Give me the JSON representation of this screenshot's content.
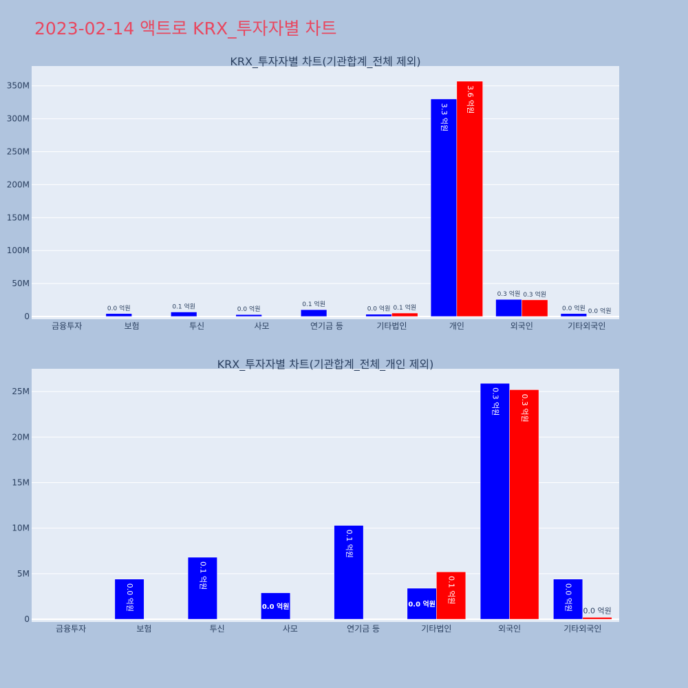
{
  "page_title": "2023-02-14 액트로 KRX_투자자별 차트",
  "colors": {
    "buy": "#0000ff",
    "sell": "#ff0000",
    "plot_bg": "#e5ecf6",
    "page_bg": "#b0c4de",
    "title": "#e8475f"
  },
  "chart_data": [
    {
      "type": "bar",
      "title": "KRX_투자자별 차트(기관합계_전체 제외)",
      "categories": [
        "금융투자",
        "보험",
        "투신",
        "사모",
        "연기금 등",
        "기타법인",
        "개인",
        "외국인",
        "기타외국인"
      ],
      "ylim": [
        0,
        380000000
      ],
      "yticks": [
        0,
        50000000,
        100000000,
        150000000,
        200000000,
        250000000,
        300000000,
        350000000
      ],
      "ytick_labels": [
        "0",
        "50M",
        "100M",
        "150M",
        "200M",
        "250M",
        "300M",
        "350M"
      ],
      "series": [
        {
          "color": "#0000ff",
          "values": [
            0,
            4400000,
            6800000,
            2900000,
            10300000,
            3400000,
            330000000,
            25900000,
            4400000
          ],
          "labels": [
            "",
            "0.0 억원",
            "0.1 억원",
            "0.0 억원",
            "0.1 억원",
            "0.0 억원",
            "3.3 억원",
            "0.3 억원",
            "0.0 억원"
          ]
        },
        {
          "color": "#ff0000",
          "values": [
            0,
            0,
            0,
            0,
            0,
            5200000,
            357000000,
            25200000,
            200000
          ],
          "labels": [
            "",
            "",
            "",
            "",
            "",
            "0.1 억원",
            "3.6 억원",
            "0.3 억원",
            "0.0 억원"
          ]
        }
      ]
    },
    {
      "type": "bar",
      "title": "KRX_투자자별 차트(기관합계_전체_개인 제외)",
      "categories": [
        "금융투자",
        "보험",
        "투신",
        "사모",
        "연기금 등",
        "기타법인",
        "외국인",
        "기타외국인"
      ],
      "ylim": [
        0,
        27500000
      ],
      "yticks": [
        0,
        5000000,
        10000000,
        15000000,
        20000000,
        25000000
      ],
      "ytick_labels": [
        "0",
        "5M",
        "10M",
        "15M",
        "20M",
        "25M"
      ],
      "series": [
        {
          "color": "#0000ff",
          "values": [
            0,
            4400000,
            6800000,
            2900000,
            10300000,
            3400000,
            25900000,
            4400000
          ],
          "labels": [
            "",
            "0.0 억원",
            "0.1 억원",
            "0.0 억원",
            "0.1 억원",
            "0.0 억원",
            "0.3 억원",
            "0.0 억원"
          ]
        },
        {
          "color": "#ff0000",
          "values": [
            0,
            0,
            0,
            0,
            0,
            5200000,
            25200000,
            200000
          ],
          "labels": [
            "",
            "",
            "",
            "",
            "",
            "0.1 억원",
            "0.3 억원",
            "0.0 억원"
          ]
        }
      ]
    }
  ]
}
